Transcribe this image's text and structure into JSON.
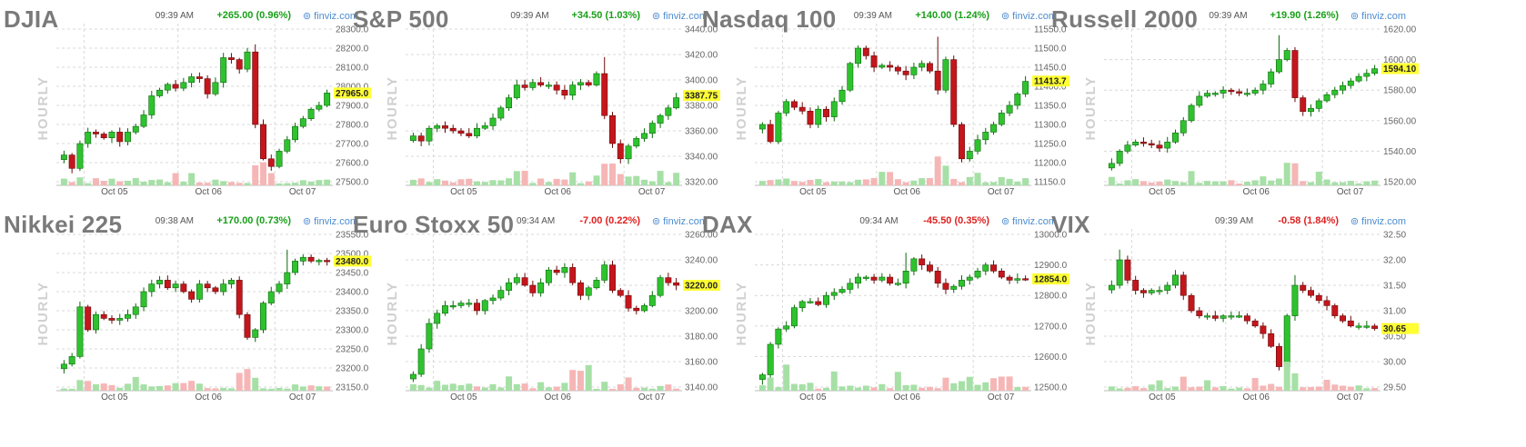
{
  "source": "finviz.com",
  "timeframe_label": "HOURLY",
  "colors": {
    "up": "#2fc22f",
    "down": "#c4161c",
    "vol_up": "#a6e0a6",
    "vol_down": "#f6b6b6",
    "price_highlight": "#ffff33",
    "change_up": "#18a018",
    "change_down": "#e02020",
    "title": "#7a7a7a",
    "grid": "#d8d8d8"
  },
  "icons": {
    "source_link": "finviz-logo-icon"
  },
  "panels": [
    {
      "title": "DJIA",
      "time": "09:39 AM",
      "change": "+265.00 (0.96%)",
      "direction": "up"
    },
    {
      "title": "S&P 500",
      "time": "09:39 AM",
      "change": "+34.50 (1.03%)",
      "direction": "up"
    },
    {
      "title": "Nasdaq 100",
      "time": "09:39 AM",
      "change": "+140.00 (1.24%)",
      "direction": "up"
    },
    {
      "title": "Russell 2000",
      "time": "09:39 AM",
      "change": "+19.90 (1.26%)",
      "direction": "up"
    },
    {
      "title": "Nikkei 225",
      "time": "09:38 AM",
      "change": "+170.00 (0.73%)",
      "direction": "up"
    },
    {
      "title": "Euro Stoxx 50",
      "time": "09:34 AM",
      "change": "-7.00 (0.22%)",
      "direction": "down"
    },
    {
      "title": "DAX",
      "time": "09:34 AM",
      "change": "-45.50 (0.35%)",
      "direction": "down"
    },
    {
      "title": "VIX",
      "time": "09:39 AM",
      "change": "-0.58 (1.84%)",
      "direction": "down"
    }
  ],
  "chart_data": [
    {
      "type": "candlestick",
      "title": "DJIA",
      "ylim": [
        27500,
        28300
      ],
      "yticks": [
        27500,
        27600,
        27700,
        27800,
        27900,
        28000,
        28100,
        28200,
        28300
      ],
      "ytick_labels": [
        "27500.0",
        "27600.0",
        "27700.0",
        "27800.0",
        "27900.0",
        "28000.0",
        "28100.0",
        "28200.0",
        "28300.0"
      ],
      "last_price": 27965,
      "last_label": "27965.0",
      "x_labels": [
        "Oct 05",
        "Oct 06",
        "Oct 07"
      ],
      "path": [
        27640,
        27570,
        27700,
        27760,
        27750,
        27730,
        27760,
        27710,
        27760,
        27790,
        27850,
        27950,
        27980,
        28010,
        27990,
        28020,
        28050,
        28040,
        27960,
        28020,
        28150,
        28140,
        28090,
        28180,
        27800,
        27620,
        27580,
        27660,
        27720,
        27790,
        27830,
        27880,
        27900,
        27965
      ],
      "spikes": {
        "24": 28220
      },
      "volume_spikes": [
        24,
        25
      ]
    },
    {
      "type": "candlestick",
      "title": "S&P 500",
      "ylim": [
        3320,
        3440
      ],
      "yticks": [
        3320,
        3340,
        3360,
        3380,
        3400,
        3420,
        3440
      ],
      "ytick_labels": [
        "3320.00",
        "3340.00",
        "3360.00",
        "3380.00",
        "3400.00",
        "3420.00",
        "3440.00"
      ],
      "last_price": 3387.75,
      "last_label": "3387.75",
      "x_labels": [
        "Oct 05",
        "Oct 06",
        "Oct 07"
      ],
      "path": [
        3356,
        3352,
        3362,
        3364,
        3362,
        3360,
        3358,
        3356,
        3362,
        3364,
        3370,
        3378,
        3386,
        3396,
        3394,
        3398,
        3396,
        3396,
        3392,
        3388,
        3396,
        3398,
        3396,
        3405,
        3372,
        3350,
        3338,
        3348,
        3354,
        3358,
        3366,
        3372,
        3378,
        3386
      ],
      "spikes": {
        "24": 3418
      },
      "volume_spikes": [
        24,
        25
      ]
    },
    {
      "type": "candlestick",
      "title": "Nasdaq 100",
      "ylim": [
        11150,
        11550
      ],
      "yticks": [
        11150,
        11200,
        11250,
        11300,
        11350,
        11400,
        11450,
        11500,
        11550
      ],
      "ytick_labels": [
        "11150.0",
        "11200.0",
        "11250.0",
        "11300.0",
        "11350.0",
        "11400.0",
        "11450.0",
        "11500.0",
        "11550.0"
      ],
      "last_price": 11413.75,
      "last_label": "11413.7",
      "x_labels": [
        "Oct 05",
        "Oct 06",
        "Oct 07"
      ],
      "path": [
        11300,
        11255,
        11330,
        11360,
        11345,
        11335,
        11300,
        11340,
        11320,
        11360,
        11390,
        11460,
        11500,
        11480,
        11450,
        11455,
        11450,
        11440,
        11430,
        11450,
        11460,
        11440,
        11390,
        11470,
        11300,
        11210,
        11230,
        11260,
        11280,
        11300,
        11330,
        11350,
        11380,
        11413
      ],
      "spikes": {
        "22": 11530
      },
      "volume_spikes": [
        22,
        23
      ]
    },
    {
      "type": "candlestick",
      "title": "Russell 2000",
      "ylim": [
        1520,
        1620
      ],
      "yticks": [
        1520,
        1540,
        1560,
        1580,
        1600,
        1620
      ],
      "ytick_labels": [
        "1520.00",
        "1540.00",
        "1560.00",
        "1580.00",
        "1600.00",
        "1620.00"
      ],
      "last_price": 1594.1,
      "last_label": "1594.10",
      "x_labels": [
        "Oct 05",
        "Oct 06",
        "Oct 07"
      ],
      "path": [
        1532,
        1540,
        1544,
        1546,
        1545,
        1544,
        1542,
        1546,
        1552,
        1560,
        1570,
        1576,
        1578,
        1578,
        1580,
        1579,
        1578,
        1578,
        1580,
        1584,
        1592,
        1600,
        1606,
        1575,
        1566,
        1568,
        1573,
        1577,
        1580,
        1583,
        1586,
        1589,
        1591,
        1594
      ],
      "spikes": {
        "21": 1616
      },
      "volume_spikes": [
        22,
        23
      ]
    },
    {
      "type": "candlestick",
      "title": "Nikkei 225",
      "ylim": [
        23150,
        23550
      ],
      "yticks": [
        23150,
        23200,
        23250,
        23300,
        23350,
        23400,
        23450,
        23500,
        23550
      ],
      "ytick_labels": [
        "23150.0",
        "23200.0",
        "23250.0",
        "23300.0",
        "23350.0",
        "23400.0",
        "23450.0",
        "23500.0",
        "23550.0"
      ],
      "last_price": 23480,
      "last_label": "23480.0",
      "x_labels": [
        "Oct 05",
        "Oct 06",
        "Oct 07"
      ],
      "path": [
        23210,
        23230,
        23360,
        23300,
        23340,
        23330,
        23325,
        23330,
        23340,
        23360,
        23400,
        23420,
        23430,
        23410,
        23420,
        23400,
        23380,
        23420,
        23410,
        23400,
        23420,
        23430,
        23340,
        23280,
        23300,
        23370,
        23400,
        23420,
        23450,
        23480,
        23490,
        23480,
        23482,
        23480
      ],
      "spikes": {
        "28": 23510
      },
      "volume_spikes": [
        22,
        23
      ]
    },
    {
      "type": "candlestick",
      "title": "Euro Stoxx 50",
      "ylim": [
        3140,
        3260
      ],
      "yticks": [
        3140,
        3160,
        3180,
        3200,
        3220,
        3240,
        3260
      ],
      "ytick_labels": [
        "3140.00",
        "3160.00",
        "3180.00",
        "3200.00",
        "3220.00",
        "3240.00",
        "3260.00"
      ],
      "last_price": 3220,
      "last_label": "3220.00",
      "x_labels": [
        "Oct 05",
        "Oct 06",
        "Oct 07"
      ],
      "path": [
        3150,
        3170,
        3190,
        3198,
        3204,
        3204,
        3206,
        3206,
        3200,
        3208,
        3210,
        3216,
        3222,
        3226,
        3220,
        3214,
        3222,
        3232,
        3230,
        3234,
        3222,
        3212,
        3218,
        3224,
        3236,
        3216,
        3212,
        3202,
        3200,
        3204,
        3212,
        3226,
        3222,
        3220
      ],
      "spikes": {},
      "volume_spikes": [
        20,
        21,
        22
      ]
    },
    {
      "type": "candlestick",
      "title": "DAX",
      "ylim": [
        12500,
        13000
      ],
      "yticks": [
        12500,
        12600,
        12700,
        12800,
        12900,
        13000
      ],
      "ytick_labels": [
        "12500.0",
        "12600.0",
        "12700.0",
        "12800.0",
        "12900.0",
        "13000.0"
      ],
      "last_price": 12854,
      "last_label": "12854.0",
      "x_labels": [
        "Oct 05",
        "Oct 06",
        "Oct 07"
      ],
      "path": [
        12540,
        12640,
        12690,
        12700,
        12760,
        12780,
        12780,
        12770,
        12800,
        12810,
        12820,
        12840,
        12860,
        12860,
        12850,
        12860,
        12840,
        12840,
        12880,
        12920,
        12900,
        12880,
        12840,
        12820,
        12830,
        12850,
        12860,
        12880,
        12900,
        12880,
        12860,
        12850,
        12855,
        12854
      ],
      "spikes": {
        "18": 12940
      },
      "volume_spikes": [
        3,
        9,
        17
      ]
    },
    {
      "type": "candlestick",
      "title": "VIX",
      "ylim": [
        29.5,
        32.5
      ],
      "yticks": [
        29.5,
        30.0,
        30.5,
        31.0,
        31.5,
        32.0,
        32.5
      ],
      "ytick_labels": [
        "29.50",
        "30.00",
        "30.50",
        "31.00",
        "31.50",
        "32.00",
        "32.50"
      ],
      "last_price": 30.65,
      "last_label": "30.65",
      "x_labels": [
        "Oct 05",
        "Oct 06",
        "Oct 07"
      ],
      "path": [
        31.5,
        32.0,
        31.6,
        31.4,
        31.35,
        31.4,
        31.4,
        31.5,
        31.7,
        31.3,
        31.0,
        30.9,
        30.9,
        30.85,
        30.9,
        30.9,
        30.9,
        30.8,
        30.7,
        30.55,
        30.3,
        29.9,
        30.9,
        31.5,
        31.4,
        31.3,
        31.2,
        31.1,
        30.9,
        30.8,
        30.7,
        30.7,
        30.7,
        30.65
      ],
      "spikes": {
        "1": 32.2,
        "23": 31.7
      },
      "volume_spikes": [
        22,
        23
      ]
    }
  ]
}
